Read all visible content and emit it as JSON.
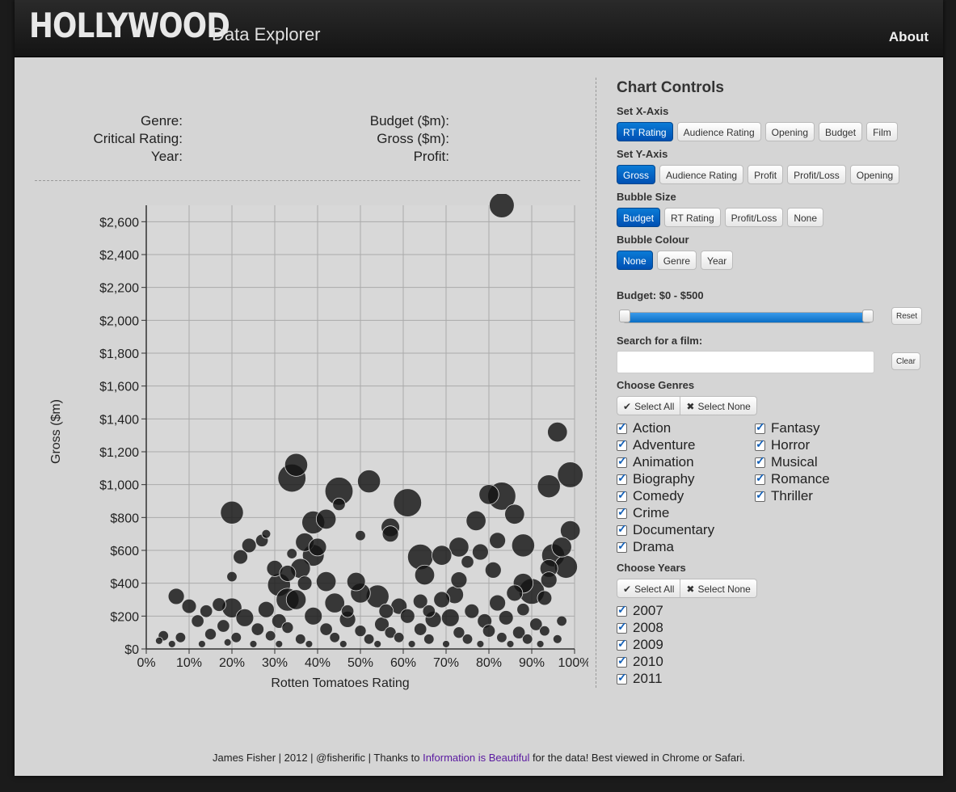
{
  "navbar": {
    "brand": "HOLLYWOOD",
    "subtitle": "Data Explorer",
    "about": "About"
  },
  "info": {
    "genre": "Genre:",
    "critical_rating": "Critical Rating:",
    "year": "Year:",
    "budget": "Budget ($m):",
    "gross": "Gross ($m):",
    "profit": "Profit:"
  },
  "controls": {
    "title": "Chart Controls",
    "x_axis": {
      "label": "Set X-Axis",
      "options": [
        "RT Rating",
        "Audience Rating",
        "Opening",
        "Budget",
        "Film"
      ],
      "active": 0
    },
    "y_axis": {
      "label": "Set Y-Axis",
      "options": [
        "Gross",
        "Audience Rating",
        "Profit",
        "Profit/Loss",
        "Opening"
      ],
      "active": 0
    },
    "bubble_size": {
      "label": "Bubble Size",
      "options": [
        "Budget",
        "RT Rating",
        "Profit/Loss",
        "None"
      ],
      "active": 0
    },
    "bubble_colour": {
      "label": "Bubble Colour",
      "options": [
        "None",
        "Genre",
        "Year"
      ],
      "active": 0
    },
    "budget_label": "Budget: $0 - $500",
    "budget_range": [
      0,
      500
    ],
    "reset": "Reset",
    "search_label": "Search for a film:",
    "search_value": "",
    "clear": "Clear",
    "genres_label": "Choose Genres",
    "select_all": "Select All",
    "select_none": "Select None",
    "genres_col1": [
      "Action",
      "Adventure",
      "Animation",
      "Biography",
      "Comedy",
      "Crime",
      "Documentary",
      "Drama"
    ],
    "genres_col2": [
      "Fantasy",
      "Horror",
      "Musical",
      "Romance",
      "Thriller"
    ],
    "years_label": "Choose Years",
    "years": [
      "2007",
      "2008",
      "2009",
      "2010",
      "2011"
    ],
    "accent": "#0a6ec4"
  },
  "footer": {
    "prefix": "James Fisher | 2012 | @fisherific | Thanks to ",
    "link": "Information is Beautiful",
    "suffix": " for the data! Best viewed in Chrome or Safari."
  },
  "chart_data": {
    "type": "scatter",
    "xlabel": "Rotten Tomatoes Rating",
    "ylabel": "Gross ($m)",
    "xlim": [
      0,
      100
    ],
    "ylim": [
      0,
      2700
    ],
    "xticks": [
      "0%",
      "10%",
      "20%",
      "30%",
      "40%",
      "50%",
      "60%",
      "70%",
      "80%",
      "90%",
      "100%"
    ],
    "yticks": [
      "$0",
      "$200",
      "$400",
      "$600",
      "$800",
      "$1,000",
      "$1,200",
      "$1,400",
      "$1,600",
      "$1,800",
      "$2,000",
      "$2,200",
      "$2,400",
      "$2,600"
    ],
    "ytick_values": [
      0,
      200,
      400,
      600,
      800,
      1000,
      1200,
      1400,
      1600,
      1800,
      2000,
      2200,
      2400,
      2600
    ],
    "grid": true,
    "points": [
      {
        "x": 83,
        "y": 2700,
        "size": 237
      },
      {
        "x": 96,
        "y": 1320,
        "size": 150
      },
      {
        "x": 99,
        "y": 1060,
        "size": 250
      },
      {
        "x": 35,
        "y": 1120,
        "size": 200
      },
      {
        "x": 34,
        "y": 1040,
        "size": 300
      },
      {
        "x": 45,
        "y": 960,
        "size": 300
      },
      {
        "x": 52,
        "y": 1020,
        "size": 200
      },
      {
        "x": 61,
        "y": 890,
        "size": 300
      },
      {
        "x": 94,
        "y": 990,
        "size": 200
      },
      {
        "x": 20,
        "y": 830,
        "size": 200
      },
      {
        "x": 83,
        "y": 930,
        "size": 300
      },
      {
        "x": 80,
        "y": 940,
        "size": 150
      },
      {
        "x": 86,
        "y": 820,
        "size": 150
      },
      {
        "x": 42,
        "y": 790,
        "size": 150
      },
      {
        "x": 39,
        "y": 770,
        "size": 200
      },
      {
        "x": 45,
        "y": 880,
        "size": 60
      },
      {
        "x": 77,
        "y": 780,
        "size": 150
      },
      {
        "x": 57,
        "y": 740,
        "size": 130
      },
      {
        "x": 99,
        "y": 720,
        "size": 150
      },
      {
        "x": 50,
        "y": 690,
        "size": 40
      },
      {
        "x": 28,
        "y": 700,
        "size": 30
      },
      {
        "x": 27,
        "y": 660,
        "size": 60
      },
      {
        "x": 37,
        "y": 650,
        "size": 130
      },
      {
        "x": 24,
        "y": 630,
        "size": 80
      },
      {
        "x": 57,
        "y": 700,
        "size": 100
      },
      {
        "x": 82,
        "y": 660,
        "size": 100
      },
      {
        "x": 88,
        "y": 630,
        "size": 200
      },
      {
        "x": 97,
        "y": 620,
        "size": 150
      },
      {
        "x": 73,
        "y": 620,
        "size": 150
      },
      {
        "x": 40,
        "y": 620,
        "size": 120
      },
      {
        "x": 22,
        "y": 560,
        "size": 80
      },
      {
        "x": 64,
        "y": 560,
        "size": 250
      },
      {
        "x": 69,
        "y": 570,
        "size": 150
      },
      {
        "x": 78,
        "y": 590,
        "size": 100
      },
      {
        "x": 95,
        "y": 570,
        "size": 200
      },
      {
        "x": 39,
        "y": 570,
        "size": 180
      },
      {
        "x": 34,
        "y": 580,
        "size": 40
      },
      {
        "x": 30,
        "y": 490,
        "size": 100
      },
      {
        "x": 98,
        "y": 500,
        "size": 200
      },
      {
        "x": 94,
        "y": 490,
        "size": 120
      },
      {
        "x": 81,
        "y": 480,
        "size": 100
      },
      {
        "x": 75,
        "y": 530,
        "size": 60
      },
      {
        "x": 36,
        "y": 490,
        "size": 150
      },
      {
        "x": 33,
        "y": 460,
        "size": 100
      },
      {
        "x": 20,
        "y": 440,
        "size": 40
      },
      {
        "x": 42,
        "y": 410,
        "size": 150
      },
      {
        "x": 49,
        "y": 410,
        "size": 130
      },
      {
        "x": 65,
        "y": 450,
        "size": 150
      },
      {
        "x": 73,
        "y": 420,
        "size": 100
      },
      {
        "x": 88,
        "y": 400,
        "size": 150
      },
      {
        "x": 94,
        "y": 420,
        "size": 100
      },
      {
        "x": 31,
        "y": 390,
        "size": 200
      },
      {
        "x": 37,
        "y": 400,
        "size": 80
      },
      {
        "x": 50,
        "y": 340,
        "size": 150
      },
      {
        "x": 54,
        "y": 320,
        "size": 200
      },
      {
        "x": 90,
        "y": 350,
        "size": 250
      },
      {
        "x": 7,
        "y": 320,
        "size": 100
      },
      {
        "x": 17,
        "y": 270,
        "size": 70
      },
      {
        "x": 10,
        "y": 260,
        "size": 80
      },
      {
        "x": 20,
        "y": 250,
        "size": 150
      },
      {
        "x": 28,
        "y": 240,
        "size": 100
      },
      {
        "x": 35,
        "y": 300,
        "size": 150
      },
      {
        "x": 33,
        "y": 300,
        "size": 200
      },
      {
        "x": 44,
        "y": 280,
        "size": 150
      },
      {
        "x": 59,
        "y": 260,
        "size": 100
      },
      {
        "x": 64,
        "y": 290,
        "size": 80
      },
      {
        "x": 69,
        "y": 300,
        "size": 100
      },
      {
        "x": 72,
        "y": 330,
        "size": 120
      },
      {
        "x": 82,
        "y": 280,
        "size": 100
      },
      {
        "x": 86,
        "y": 340,
        "size": 100
      },
      {
        "x": 93,
        "y": 310,
        "size": 80
      },
      {
        "x": 14,
        "y": 230,
        "size": 60
      },
      {
        "x": 23,
        "y": 190,
        "size": 120
      },
      {
        "x": 31,
        "y": 170,
        "size": 80
      },
      {
        "x": 39,
        "y": 200,
        "size": 120
      },
      {
        "x": 47,
        "y": 180,
        "size": 100
      },
      {
        "x": 55,
        "y": 150,
        "size": 80
      },
      {
        "x": 61,
        "y": 200,
        "size": 80
      },
      {
        "x": 67,
        "y": 180,
        "size": 100
      },
      {
        "x": 71,
        "y": 190,
        "size": 120
      },
      {
        "x": 79,
        "y": 170,
        "size": 80
      },
      {
        "x": 84,
        "y": 190,
        "size": 80
      },
      {
        "x": 91,
        "y": 150,
        "size": 60
      },
      {
        "x": 97,
        "y": 170,
        "size": 40
      },
      {
        "x": 12,
        "y": 170,
        "size": 60
      },
      {
        "x": 18,
        "y": 140,
        "size": 60
      },
      {
        "x": 26,
        "y": 120,
        "size": 60
      },
      {
        "x": 33,
        "y": 130,
        "size": 50
      },
      {
        "x": 42,
        "y": 120,
        "size": 60
      },
      {
        "x": 50,
        "y": 110,
        "size": 50
      },
      {
        "x": 57,
        "y": 100,
        "size": 50
      },
      {
        "x": 64,
        "y": 120,
        "size": 60
      },
      {
        "x": 73,
        "y": 100,
        "size": 50
      },
      {
        "x": 80,
        "y": 110,
        "size": 60
      },
      {
        "x": 87,
        "y": 100,
        "size": 60
      },
      {
        "x": 93,
        "y": 110,
        "size": 40
      },
      {
        "x": 4,
        "y": 80,
        "size": 40
      },
      {
        "x": 8,
        "y": 70,
        "size": 40
      },
      {
        "x": 15,
        "y": 90,
        "size": 50
      },
      {
        "x": 21,
        "y": 70,
        "size": 40
      },
      {
        "x": 29,
        "y": 80,
        "size": 40
      },
      {
        "x": 36,
        "y": 60,
        "size": 40
      },
      {
        "x": 44,
        "y": 70,
        "size": 40
      },
      {
        "x": 52,
        "y": 60,
        "size": 40
      },
      {
        "x": 59,
        "y": 70,
        "size": 40
      },
      {
        "x": 66,
        "y": 60,
        "size": 40
      },
      {
        "x": 75,
        "y": 60,
        "size": 40
      },
      {
        "x": 83,
        "y": 70,
        "size": 40
      },
      {
        "x": 89,
        "y": 60,
        "size": 40
      },
      {
        "x": 96,
        "y": 60,
        "size": 30
      },
      {
        "x": 6,
        "y": 30,
        "size": 20
      },
      {
        "x": 13,
        "y": 30,
        "size": 20
      },
      {
        "x": 19,
        "y": 40,
        "size": 20
      },
      {
        "x": 25,
        "y": 30,
        "size": 20
      },
      {
        "x": 31,
        "y": 30,
        "size": 20
      },
      {
        "x": 38,
        "y": 30,
        "size": 20
      },
      {
        "x": 46,
        "y": 30,
        "size": 20
      },
      {
        "x": 54,
        "y": 30,
        "size": 20
      },
      {
        "x": 62,
        "y": 30,
        "size": 20
      },
      {
        "x": 70,
        "y": 30,
        "size": 20
      },
      {
        "x": 78,
        "y": 30,
        "size": 20
      },
      {
        "x": 85,
        "y": 30,
        "size": 20
      },
      {
        "x": 92,
        "y": 30,
        "size": 20
      },
      {
        "x": 3,
        "y": 50,
        "size": 20
      },
      {
        "x": 47,
        "y": 230,
        "size": 60
      },
      {
        "x": 56,
        "y": 230,
        "size": 80
      },
      {
        "x": 66,
        "y": 230,
        "size": 60
      },
      {
        "x": 76,
        "y": 230,
        "size": 80
      },
      {
        "x": 88,
        "y": 240,
        "size": 60
      }
    ]
  }
}
